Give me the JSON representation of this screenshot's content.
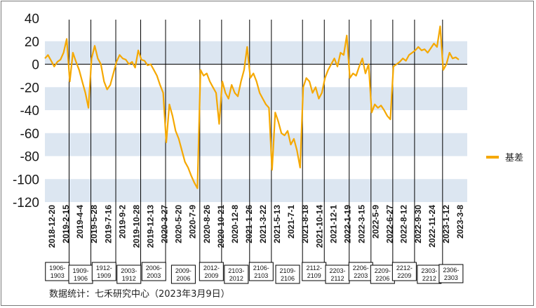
{
  "chart_data": {
    "type": "line",
    "title": "",
    "xlabel": "",
    "ylabel": "",
    "ylim": [
      -120,
      40
    ],
    "yticks": [
      "40",
      "20",
      "0",
      "-20",
      "-40",
      "-60",
      "-80",
      "-100",
      "-120"
    ],
    "band_color": "#dce6f1",
    "line_color": "#f5a800",
    "legend_position": "right",
    "x_tick_labels": [
      "2018-12-20",
      "2019-2-15",
      "2019-4-4",
      "2019-5-28",
      "2019-7-16",
      "2019-9-2",
      "2019-10-28",
      "2019-12-13",
      "2020-3-27",
      "2020-5-20",
      "2020-7-9",
      "2020-8-26",
      "2020-10-21",
      "2020-12-8",
      "2021-1-26",
      "2021-3-22",
      "2021-5-13",
      "2021-7-1",
      "2021-8-18",
      "2021-10-14",
      "2021-12-1",
      "2022-1-19",
      "2022-3-15",
      "2022-5-9",
      "2022-6-27",
      "2022-8-12",
      "2022-9-30",
      "2022-11-24",
      "2023-1-12",
      "2023-3-8"
    ],
    "contract_boxes": [
      [
        "1906-",
        "1903"
      ],
      [
        "1909-",
        "1906"
      ],
      [
        "1912-",
        "1909"
      ],
      [
        "2003-",
        "1912"
      ],
      [
        "2006-",
        "2003"
      ],
      [
        "2009-",
        "2006"
      ],
      [
        "2012-",
        "2009"
      ],
      [
        "2103-",
        "2012"
      ],
      [
        "2106-",
        "2103"
      ],
      [
        "2109-",
        "2106"
      ],
      [
        "2112-",
        "2109"
      ],
      [
        "2203-",
        "2112"
      ],
      [
        "2206-",
        "2203"
      ],
      [
        "2209-",
        "2206"
      ],
      [
        "2212-",
        "2209"
      ],
      [
        "2303-",
        "2212"
      ],
      [
        "2306-",
        "2303"
      ]
    ],
    "series": [
      {
        "name": "基差",
        "points": [
          [
            0,
            5
          ],
          [
            1,
            8
          ],
          [
            2,
            3
          ],
          [
            3,
            -2
          ],
          [
            4,
            2
          ],
          [
            5,
            4
          ],
          [
            6,
            10
          ],
          [
            7,
            22
          ],
          [
            8,
            -15
          ],
          [
            9,
            10
          ],
          [
            10,
            2
          ],
          [
            11,
            -5
          ],
          [
            12,
            -15
          ],
          [
            13,
            -25
          ],
          [
            14,
            -38
          ],
          [
            15,
            5
          ],
          [
            16,
            16
          ],
          [
            17,
            5
          ],
          [
            18,
            0
          ],
          [
            19,
            -15
          ],
          [
            20,
            -22
          ],
          [
            21,
            -18
          ],
          [
            22,
            -8
          ],
          [
            23,
            2
          ],
          [
            24,
            8
          ],
          [
            25,
            5
          ],
          [
            26,
            4
          ],
          [
            27,
            0
          ],
          [
            28,
            2
          ],
          [
            29,
            -3
          ],
          [
            30,
            12
          ],
          [
            31,
            4
          ],
          [
            32,
            3
          ],
          [
            33,
            -1
          ],
          [
            34,
            0
          ],
          [
            35,
            -5
          ],
          [
            36,
            -10
          ],
          [
            37,
            -18
          ],
          [
            38,
            -25
          ],
          [
            39,
            -68
          ],
          [
            40,
            -35
          ],
          [
            41,
            -45
          ],
          [
            42,
            -58
          ],
          [
            43,
            -65
          ],
          [
            44,
            -75
          ],
          [
            45,
            -85
          ],
          [
            46,
            -90
          ],
          [
            47,
            -97
          ],
          [
            48,
            -103
          ],
          [
            49,
            -108
          ],
          [
            50,
            -5
          ],
          [
            51,
            -10
          ],
          [
            52,
            -8
          ],
          [
            53,
            -15
          ],
          [
            54,
            -20
          ],
          [
            55,
            -25
          ],
          [
            56,
            -52
          ],
          [
            57,
            -15
          ],
          [
            58,
            -25
          ],
          [
            59,
            -30
          ],
          [
            60,
            -18
          ],
          [
            61,
            -25
          ],
          [
            62,
            -28
          ],
          [
            63,
            -15
          ],
          [
            64,
            -5
          ],
          [
            65,
            15
          ],
          [
            66,
            -12
          ],
          [
            67,
            -8
          ],
          [
            68,
            -15
          ],
          [
            69,
            -25
          ],
          [
            70,
            -30
          ],
          [
            71,
            -35
          ],
          [
            72,
            -38
          ],
          [
            73,
            -92
          ],
          [
            74,
            -42
          ],
          [
            75,
            -50
          ],
          [
            76,
            -60
          ],
          [
            77,
            -62
          ],
          [
            78,
            -58
          ],
          [
            79,
            -70
          ],
          [
            80,
            -65
          ],
          [
            81,
            -75
          ],
          [
            82,
            -90
          ],
          [
            83,
            -20
          ],
          [
            84,
            -12
          ],
          [
            85,
            -15
          ],
          [
            86,
            -25
          ],
          [
            87,
            -20
          ],
          [
            88,
            -30
          ],
          [
            89,
            -25
          ],
          [
            90,
            -12
          ],
          [
            91,
            -5
          ],
          [
            92,
            0
          ],
          [
            93,
            5
          ],
          [
            94,
            -2
          ],
          [
            95,
            10
          ],
          [
            96,
            8
          ],
          [
            97,
            25
          ],
          [
            98,
            -12
          ],
          [
            99,
            -8
          ],
          [
            100,
            -10
          ],
          [
            101,
            -2
          ],
          [
            102,
            5
          ],
          [
            103,
            -8
          ],
          [
            104,
            0
          ],
          [
            105,
            -42
          ],
          [
            106,
            -35
          ],
          [
            107,
            -38
          ],
          [
            108,
            -36
          ],
          [
            109,
            -40
          ],
          [
            110,
            -45
          ],
          [
            111,
            -48
          ],
          [
            112,
            -2
          ],
          [
            113,
            0
          ],
          [
            114,
            2
          ],
          [
            115,
            5
          ],
          [
            116,
            3
          ],
          [
            117,
            8
          ],
          [
            118,
            10
          ],
          [
            119,
            12
          ],
          [
            120,
            15
          ],
          [
            121,
            12
          ],
          [
            122,
            13
          ],
          [
            123,
            10
          ],
          [
            124,
            14
          ],
          [
            125,
            18
          ],
          [
            126,
            15
          ],
          [
            127,
            33
          ],
          [
            128,
            -5
          ],
          [
            129,
            0
          ],
          [
            130,
            10
          ],
          [
            131,
            5
          ],
          [
            132,
            6
          ],
          [
            133,
            4
          ]
        ]
      }
    ]
  },
  "source_text": "数据统计：七禾研究中心（2023年3月9日）"
}
